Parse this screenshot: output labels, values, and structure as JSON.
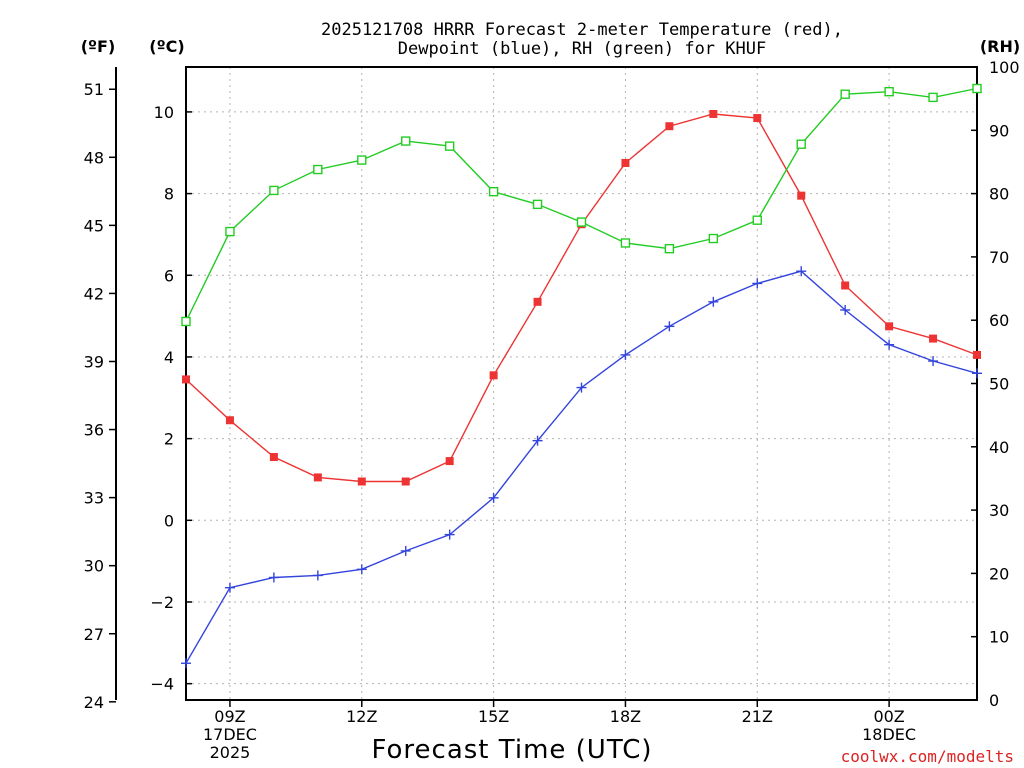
{
  "chart_data": {
    "type": "line",
    "title": "2025121708 HRRR Forecast 2-meter Temperature (red),",
    "subtitle": "Dewpoint (blue), RH (green) for KHUF",
    "xlabel": "Forecast Time (UTC)",
    "credit": "coolwx.com/modelts",
    "units": {
      "fahrenheit": "(ºF)",
      "celsius": "(ºC)",
      "rh": "(RH)"
    },
    "x_hours": [
      8,
      9,
      10,
      11,
      12,
      13,
      14,
      15,
      16,
      17,
      18,
      19,
      20,
      21,
      22,
      23,
      24,
      25,
      26
    ],
    "x_ticks": [
      {
        "hour": 9,
        "lines": [
          "09Z",
          "17DEC",
          "2025"
        ]
      },
      {
        "hour": 12,
        "lines": [
          "12Z"
        ]
      },
      {
        "hour": 15,
        "lines": [
          "15Z"
        ]
      },
      {
        "hour": 18,
        "lines": [
          "18Z"
        ]
      },
      {
        "hour": 21,
        "lines": [
          "21Z"
        ]
      },
      {
        "hour": 24,
        "lines": [
          "00Z",
          "18DEC"
        ]
      }
    ],
    "xlim": [
      8,
      26
    ],
    "ylim_celsius": [
      -4.4,
      11.1
    ],
    "ylim_rh": [
      0,
      100
    ],
    "yticks_celsius": [
      -4,
      -2,
      0,
      2,
      4,
      6,
      8,
      10
    ],
    "yticks_fahrenheit": [
      24,
      27,
      30,
      33,
      36,
      39,
      42,
      45,
      48,
      51
    ],
    "yticks_rh": [
      0,
      10,
      20,
      30,
      40,
      50,
      60,
      70,
      80,
      90,
      100
    ],
    "grid": true,
    "series": [
      {
        "name": "Temperature",
        "axis": "celsius",
        "color": "#ee3333",
        "marker": "filled-square",
        "values": [
          3.45,
          2.45,
          1.55,
          1.05,
          0.95,
          0.95,
          1.45,
          3.55,
          5.35,
          7.25,
          8.75,
          9.65,
          9.95,
          9.85,
          7.95,
          5.75,
          4.75,
          4.45,
          4.05
        ]
      },
      {
        "name": "Dewpoint",
        "axis": "celsius",
        "color": "#3344dd",
        "marker": "plus",
        "values": [
          -3.5,
          -1.65,
          -1.4,
          -1.35,
          -1.2,
          -0.75,
          -0.35,
          0.55,
          1.95,
          3.25,
          4.05,
          4.75,
          5.35,
          5.8,
          6.1,
          5.15,
          4.3,
          3.9,
          3.6
        ]
      },
      {
        "name": "RH",
        "axis": "rh",
        "color": "#22cc22",
        "marker": "open-square",
        "values": [
          59.8,
          74.0,
          80.5,
          83.8,
          85.3,
          88.3,
          87.5,
          80.3,
          78.3,
          75.5,
          72.2,
          71.3,
          72.9,
          75.8,
          87.8,
          95.7,
          96.1,
          95.2,
          96.6
        ]
      }
    ]
  }
}
